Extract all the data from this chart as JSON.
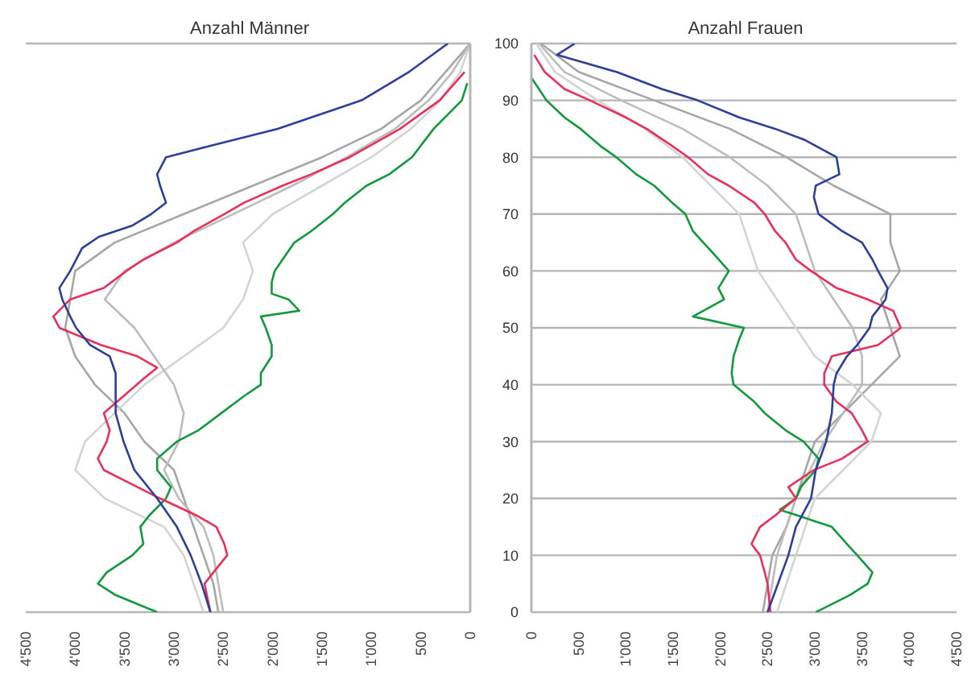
{
  "chart_data": [
    {
      "type": "line",
      "title": "Anzahl Männer",
      "xlim": [
        4500,
        0
      ],
      "xticks": [
        {
          "value": 4500,
          "label": "4'500"
        },
        {
          "value": 4000,
          "label": "4'000"
        },
        {
          "value": 3500,
          "label": "3'500"
        },
        {
          "value": 3000,
          "label": "3'000"
        },
        {
          "value": 2500,
          "label": "2'500"
        },
        {
          "value": 2000,
          "label": "2'000"
        },
        {
          "value": 1500,
          "label": "1'500"
        },
        {
          "value": 1000,
          "label": "1'000"
        },
        {
          "value": 500,
          "label": "500"
        },
        {
          "value": 0,
          "label": "0"
        }
      ],
      "ylim": [
        0,
        100
      ],
      "yticks": [
        0,
        10,
        20,
        30,
        40,
        50,
        60,
        70,
        80,
        90,
        100
      ],
      "grid": "y",
      "tick_labels": "x",
      "series": [
        {
          "color": "#a6a6a6",
          "x": [
            2550,
            2600,
            2700,
            2800,
            2900,
            3000,
            3300,
            3500,
            3800,
            4000,
            4100,
            4050,
            4000,
            3600,
            2900,
            2200,
            1500,
            900,
            500,
            250,
            0
          ],
          "values": [
            0,
            5,
            10,
            15,
            20,
            25,
            30,
            35,
            40,
            45,
            50,
            55,
            60,
            65,
            70,
            75,
            80,
            85,
            90,
            95,
            100
          ]
        },
        {
          "color": "#d4d4d4",
          "x": [
            2700,
            2800,
            2900,
            3100,
            3700,
            4000,
            3900,
            3600,
            3300,
            2900,
            2500,
            2300,
            2200,
            2300,
            2000,
            1500,
            1000,
            600,
            300,
            100,
            0
          ],
          "values": [
            0,
            5,
            10,
            15,
            20,
            25,
            30,
            35,
            40,
            45,
            50,
            55,
            60,
            65,
            70,
            75,
            80,
            85,
            90,
            95,
            100
          ]
        },
        {
          "color": "#bcbcbc",
          "x": [
            2500,
            2550,
            2600,
            2700,
            2950,
            3100,
            2950,
            2900,
            3000,
            3200,
            3400,
            3700,
            3500,
            3000,
            2400,
            1800,
            1250,
            760,
            420,
            180,
            0
          ],
          "values": [
            0,
            5,
            10,
            15,
            20,
            25,
            30,
            35,
            40,
            45,
            50,
            55,
            60,
            65,
            70,
            75,
            80,
            85,
            90,
            95,
            100
          ]
        },
        {
          "color": "#109a3c",
          "x": [
            3170,
            3590,
            3770,
            3680,
            3420,
            3310,
            3340,
            3250,
            3080,
            3030,
            3170,
            3170,
            2970,
            2750,
            2520,
            2290,
            2120,
            2120,
            2010,
            2010,
            2070,
            2120,
            1730,
            1840,
            2010,
            2010,
            1980,
            1900,
            1780,
            1610,
            1390,
            1270,
            1050,
            820,
            590,
            370,
            85,
            30
          ],
          "values": [
            0,
            3,
            5,
            7,
            10,
            12,
            15,
            17,
            20,
            22,
            25,
            27,
            30,
            32,
            35,
            38,
            40,
            42,
            45,
            47,
            50,
            52,
            53,
            55,
            56,
            58,
            60,
            62,
            65,
            67,
            70,
            72,
            75,
            77,
            80,
            85,
            90,
            93
          ]
        },
        {
          "color": "#e8305a",
          "x": [
            2630,
            2690,
            2600,
            2460,
            2490,
            2570,
            2770,
            3140,
            3370,
            3710,
            3770,
            3680,
            3650,
            3710,
            3510,
            3310,
            3170,
            3370,
            3740,
            4160,
            4220,
            4050,
            3710,
            3480,
            3310,
            2970,
            2800,
            2490,
            2290,
            1900,
            1610,
            1220,
            710,
            310,
            57
          ],
          "values": [
            0,
            5,
            7,
            10,
            12,
            15,
            17,
            20,
            22,
            25,
            27,
            30,
            32,
            35,
            38,
            41,
            43,
            45,
            47,
            50,
            52,
            55,
            57,
            60,
            62,
            65,
            67,
            70,
            72,
            75,
            77,
            80,
            85,
            90,
            95
          ]
        },
        {
          "color": "#2e3f9a",
          "x": [
            2630,
            2720,
            2830,
            2970,
            3170,
            3400,
            3510,
            3590,
            3590,
            3590,
            3650,
            3850,
            3990,
            4050,
            4130,
            4160,
            4050,
            3990,
            3930,
            3760,
            3420,
            3230,
            3080,
            3140,
            3170,
            3080,
            2630,
            1950,
            1100,
            620,
            226
          ],
          "values": [
            0,
            5,
            10,
            15,
            20,
            25,
            30,
            35,
            40,
            42,
            45,
            47,
            50,
            52,
            55,
            57,
            60,
            62,
            64,
            66,
            68,
            70,
            72,
            75,
            77,
            80,
            82,
            85,
            90,
            95,
            100
          ]
        }
      ]
    },
    {
      "type": "line",
      "title": "Anzahl Frauen",
      "xlim": [
        0,
        4500
      ],
      "xticks": [
        {
          "value": 0,
          "label": "0"
        },
        {
          "value": 500,
          "label": "500"
        },
        {
          "value": 1000,
          "label": "1'000"
        },
        {
          "value": 1500,
          "label": "1'500"
        },
        {
          "value": 2000,
          "label": "2'000"
        },
        {
          "value": 2500,
          "label": "2'500"
        },
        {
          "value": 3000,
          "label": "3'000"
        },
        {
          "value": 3500,
          "label": "3'500"
        },
        {
          "value": 4000,
          "label": "4'000"
        },
        {
          "value": 4500,
          "label": "4'500"
        }
      ],
      "ylim": [
        0,
        100
      ],
      "yticks": [
        0,
        10,
        20,
        30,
        40,
        50,
        60,
        70,
        80,
        90,
        100
      ],
      "grid": "y",
      "series": [
        {
          "color": "#a6a6a6",
          "x": [
            2450,
            2500,
            2550,
            2700,
            2800,
            2900,
            3000,
            3300,
            3600,
            3900,
            3800,
            3700,
            3900,
            3800,
            3800,
            3200,
            2700,
            2100,
            1300,
            500,
            100
          ],
          "values": [
            0,
            5,
            10,
            15,
            20,
            25,
            30,
            35,
            40,
            45,
            50,
            55,
            60,
            65,
            70,
            75,
            80,
            85,
            90,
            95,
            100
          ]
        },
        {
          "color": "#d4d4d4",
          "x": [
            2600,
            2700,
            2800,
            2900,
            3000,
            3300,
            3600,
            3700,
            3400,
            3000,
            2800,
            2600,
            2400,
            2300,
            2200,
            1900,
            1600,
            1200,
            700,
            250,
            50
          ],
          "values": [
            0,
            5,
            10,
            15,
            20,
            25,
            30,
            35,
            40,
            45,
            50,
            55,
            60,
            65,
            70,
            75,
            80,
            85,
            90,
            95,
            100
          ]
        },
        {
          "color": "#bcbcbc",
          "x": [
            2500,
            2550,
            2600,
            2700,
            2800,
            2950,
            3100,
            3300,
            3500,
            3500,
            3400,
            3200,
            3000,
            2900,
            2800,
            2500,
            2100,
            1600,
            950,
            350,
            80
          ],
          "values": [
            0,
            5,
            10,
            15,
            20,
            25,
            30,
            35,
            40,
            45,
            50,
            55,
            60,
            65,
            70,
            75,
            80,
            85,
            90,
            95,
            100
          ]
        },
        {
          "color": "#109a3c",
          "x": [
            3010,
            3370,
            3560,
            3610,
            3450,
            3340,
            3180,
            2820,
            2630,
            2800,
            2850,
            3010,
            3040,
            2880,
            2690,
            2470,
            2360,
            2140,
            2120,
            2140,
            2200,
            2250,
            1710,
            1820,
            2040,
            1980,
            2090,
            1930,
            1820,
            1710,
            1630,
            1490,
            1300,
            1110,
            900,
            730,
            520,
            350,
            160,
            80,
            0
          ],
          "values": [
            0,
            3,
            5,
            7,
            10,
            12,
            15,
            17,
            18,
            20,
            22,
            25,
            27,
            30,
            32,
            35,
            37,
            40,
            42,
            45,
            48,
            50,
            52,
            53,
            55,
            57,
            60,
            63,
            65,
            67,
            70,
            72,
            75,
            77,
            80,
            82,
            85,
            87,
            90,
            92,
            94
          ]
        },
        {
          "color": "#e8305a",
          "x": [
            2530,
            2500,
            2470,
            2420,
            2330,
            2420,
            2580,
            2800,
            2720,
            2990,
            3290,
            3560,
            3500,
            3390,
            3230,
            3100,
            3100,
            3180,
            3670,
            3910,
            3830,
            3560,
            3230,
            2960,
            2800,
            2690,
            2580,
            2470,
            2360,
            2090,
            1870,
            1660,
            1490,
            1220,
            1000,
            620,
            350,
            140,
            30
          ],
          "values": [
            0,
            5,
            7,
            10,
            12,
            15,
            17,
            20,
            22,
            25,
            27,
            30,
            32,
            35,
            37,
            40,
            42,
            45,
            47,
            50,
            53,
            55,
            57,
            60,
            62,
            65,
            67,
            70,
            72,
            75,
            77,
            80,
            82,
            85,
            87,
            90,
            92,
            95,
            98
          ]
        },
        {
          "color": "#2e3f9a",
          "x": [
            2500,
            2610,
            2720,
            2800,
            2960,
            3010,
            3120,
            3180,
            3200,
            3230,
            3340,
            3450,
            3580,
            3610,
            3750,
            3770,
            3670,
            3610,
            3500,
            3290,
            3040,
            2990,
            3010,
            3260,
            3230,
            3120,
            2900,
            2580,
            2200,
            1760,
            1380,
            900,
            270,
            460
          ],
          "values": [
            0,
            5,
            10,
            15,
            20,
            25,
            30,
            35,
            40,
            42,
            45,
            47,
            50,
            52,
            55,
            57,
            60,
            62,
            65,
            67,
            70,
            73,
            75,
            77,
            80,
            81,
            83,
            85,
            87,
            90,
            92,
            95,
            98,
            100
          ]
        }
      ]
    }
  ]
}
